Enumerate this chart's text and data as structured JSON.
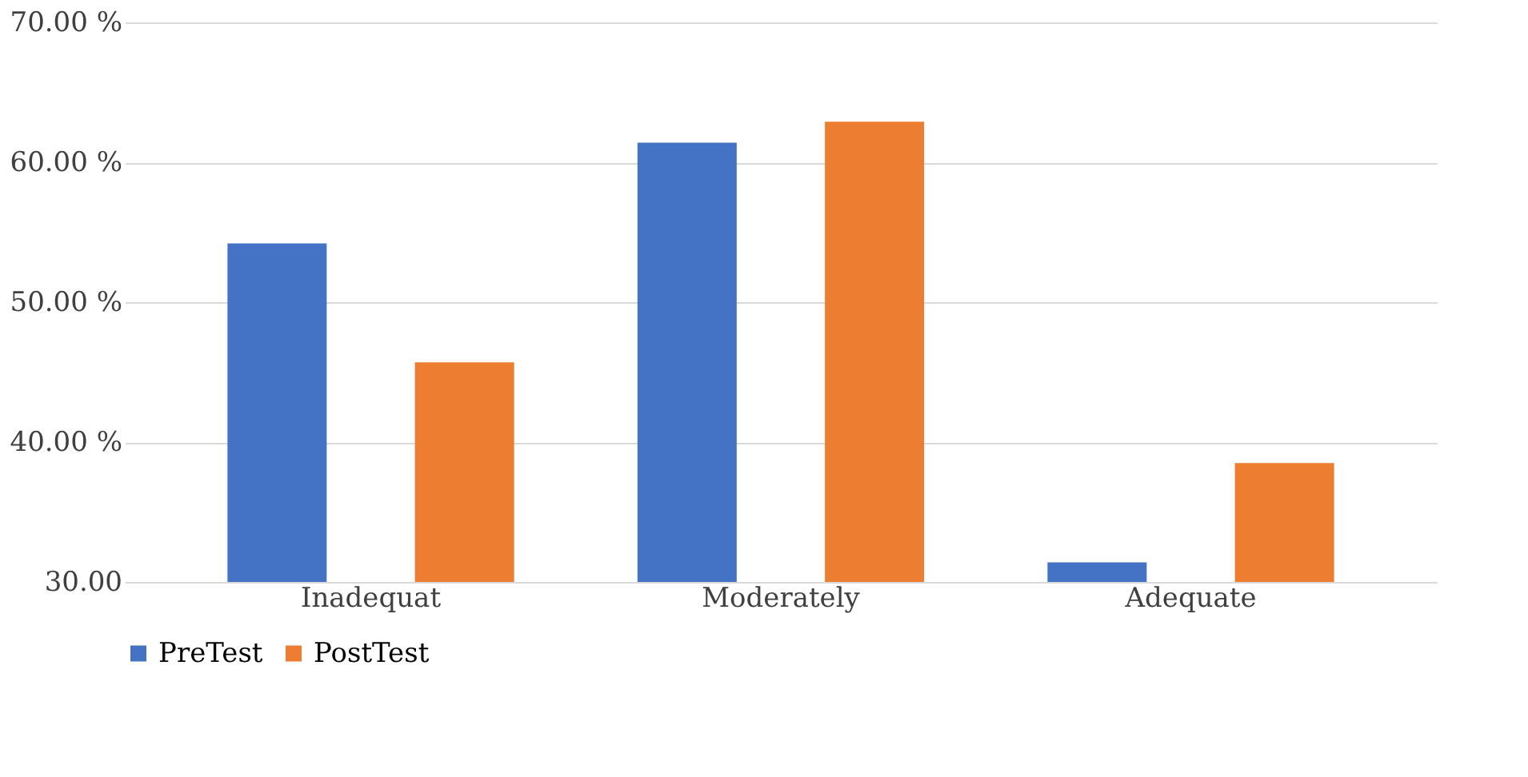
{
  "chart_data": {
    "type": "bar",
    "categories": [
      "Inadequat",
      "Moderately",
      "Adequate"
    ],
    "series": [
      {
        "name": "PreTest",
        "color": "#4472c4",
        "values": [
          54.2,
          61.4,
          31.4
        ]
      },
      {
        "name": "PostTest",
        "color": "#ed7d31",
        "values": [
          45.7,
          62.9,
          38.5
        ]
      }
    ],
    "ylim": [
      30,
      70
    ],
    "yticks": [
      {
        "value": 30,
        "label": "30.00"
      },
      {
        "value": 40,
        "label": "40.00 %"
      },
      {
        "value": 50,
        "label": "50.00 %"
      },
      {
        "value": 60,
        "label": "60.00 %"
      },
      {
        "value": 70,
        "label": "70.00 %"
      }
    ],
    "grid": "y",
    "legend": "bottom"
  }
}
